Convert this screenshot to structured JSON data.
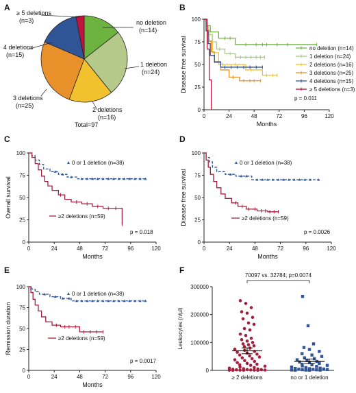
{
  "chart_data": [
    {
      "panel": "A",
      "type": "pie",
      "categories": [
        "no deletion",
        "1 deletion",
        "2 deletions",
        "3 deletions",
        "4 deletions",
        "≥ 5 deletions"
      ],
      "counts": [
        "(n=14)",
        "(n=24)",
        "(n=16)",
        "(n=25)",
        "(n=15)",
        "(n=3)"
      ],
      "values": [
        14,
        24,
        16,
        25,
        15,
        3
      ],
      "colors": [
        "#6cb33f",
        "#b5c98a",
        "#f2c12e",
        "#e8912a",
        "#2f5597",
        "#c0143c"
      ],
      "total_label": "Total=97"
    },
    {
      "panel": "B",
      "type": "line",
      "ylabel": "Disease free survival",
      "xlabel": "Months",
      "xlim": [
        0,
        120
      ],
      "ylim": [
        0,
        100
      ],
      "xticks": [
        0,
        24,
        48,
        72,
        96,
        120
      ],
      "yticks": [
        0,
        25,
        50,
        75,
        100
      ],
      "pvalue": "p = 0.011",
      "series": [
        {
          "name": "no deletion (n=14)",
          "color": "#6cb33f",
          "points": [
            [
              0,
              100
            ],
            [
              2,
              93
            ],
            [
              6,
              86
            ],
            [
              14,
              79
            ],
            [
              30,
              72
            ],
            [
              60,
              72
            ],
            [
              108,
              72
            ]
          ],
          "censor": [
            20,
            25,
            40,
            50,
            56,
            60,
            70,
            80,
            108
          ]
        },
        {
          "name": "1 deletion (n=24)",
          "color": "#a9c48a",
          "points": [
            [
              0,
              100
            ],
            [
              2,
              92
            ],
            [
              4,
              83
            ],
            [
              8,
              75
            ],
            [
              12,
              67
            ],
            [
              20,
              62
            ],
            [
              30,
              58
            ],
            [
              58,
              58
            ]
          ],
          "censor": [
            15,
            25,
            30,
            35,
            40,
            45,
            50,
            54,
            58
          ]
        },
        {
          "name": "2 deletions (n=16)",
          "color": "#f2c12e",
          "points": [
            [
              0,
              100
            ],
            [
              2,
              88
            ],
            [
              5,
              75
            ],
            [
              8,
              63
            ],
            [
              14,
              50
            ],
            [
              40,
              44
            ],
            [
              56,
              38
            ],
            [
              70,
              38
            ]
          ],
          "censor": [
            18,
            30,
            45,
            60,
            66,
            70
          ]
        },
        {
          "name": "3 deletions (n=25)",
          "color": "#e8912a",
          "points": [
            [
              0,
              100
            ],
            [
              2,
              88
            ],
            [
              4,
              76
            ],
            [
              7,
              64
            ],
            [
              10,
              52
            ],
            [
              16,
              44
            ],
            [
              24,
              36
            ],
            [
              34,
              32
            ],
            [
              54,
              32
            ]
          ],
          "censor": [
            28,
            38,
            44,
            48,
            54
          ]
        },
        {
          "name": "4 deletions (n=15)",
          "color": "#2f5597",
          "points": [
            [
              0,
              100
            ],
            [
              2,
              87
            ],
            [
              4,
              73
            ],
            [
              6,
              60
            ],
            [
              10,
              53
            ],
            [
              16,
              47
            ],
            [
              56,
              47
            ]
          ],
          "censor": [
            20,
            26,
            32,
            38,
            44,
            50,
            56
          ]
        },
        {
          "name": "≥ 5 deletions (n=3)",
          "color": "#c0143c",
          "points": [
            [
              0,
              100
            ],
            [
              3,
              67
            ],
            [
              5,
              33
            ],
            [
              7,
              0
            ]
          ],
          "censor": []
        }
      ]
    },
    {
      "panel": "C",
      "type": "line",
      "ylabel": "Overall survival",
      "xlabel": "Months",
      "xlim": [
        0,
        120
      ],
      "ylim": [
        0,
        100
      ],
      "xticks": [
        0,
        24,
        48,
        72,
        96,
        120
      ],
      "yticks": [
        0,
        25,
        50,
        75,
        100
      ],
      "pvalue": "p = 0.018",
      "series": [
        {
          "name": "0 or 1 deletion (n=38)",
          "color": "#2f5597",
          "dashed": true,
          "points": [
            [
              0,
              100
            ],
            [
              3,
              97
            ],
            [
              6,
              92
            ],
            [
              10,
              87
            ],
            [
              14,
              82
            ],
            [
              20,
              79
            ],
            [
              28,
              76
            ],
            [
              36,
              73
            ],
            [
              46,
              71
            ],
            [
              110,
              71
            ]
          ],
          "censor": [
            25,
            32,
            40,
            50,
            55,
            60,
            65,
            70,
            75,
            80,
            85,
            90,
            95,
            100,
            105,
            110
          ]
        },
        {
          "name": "≥2 deletions (n=59)",
          "color": "#a51d3c",
          "dashed": false,
          "points": [
            [
              0,
              100
            ],
            [
              3,
              95
            ],
            [
              6,
              88
            ],
            [
              9,
              81
            ],
            [
              12,
              74
            ],
            [
              15,
              68
            ],
            [
              18,
              63
            ],
            [
              22,
              58
            ],
            [
              28,
              53
            ],
            [
              34,
              48
            ],
            [
              40,
              45
            ],
            [
              50,
              43
            ],
            [
              60,
              40
            ],
            [
              70,
              38
            ],
            [
              86,
              38
            ],
            [
              88,
              20
            ]
          ],
          "censor": [
            30,
            45,
            55,
            65,
            75,
            82,
            88
          ]
        }
      ]
    },
    {
      "panel": "D",
      "type": "line",
      "ylabel": "Disease free survival",
      "xlabel": "Months",
      "xlim": [
        0,
        120
      ],
      "ylim": [
        0,
        100
      ],
      "xticks": [
        0,
        24,
        48,
        72,
        96,
        120
      ],
      "yticks": [
        0,
        25,
        50,
        75,
        100
      ],
      "pvalue": "p = 0.0026",
      "series": [
        {
          "name": "0 or 1 deletion (n=38)",
          "color": "#2f5597",
          "dashed": true,
          "points": [
            [
              0,
              100
            ],
            [
              2,
              95
            ],
            [
              5,
              90
            ],
            [
              8,
              84
            ],
            [
              12,
              79
            ],
            [
              20,
              76
            ],
            [
              30,
              74
            ],
            [
              45,
              70
            ],
            [
              108,
              70
            ]
          ],
          "censor": [
            25,
            35,
            40,
            50,
            55,
            60,
            65,
            70,
            75,
            80,
            85,
            90,
            95,
            100,
            108
          ]
        },
        {
          "name": "≥2 deletions (n=59)",
          "color": "#a51d3c",
          "dashed": false,
          "points": [
            [
              0,
              100
            ],
            [
              2,
              92
            ],
            [
              4,
              84
            ],
            [
              6,
              76
            ],
            [
              9,
              68
            ],
            [
              12,
              61
            ],
            [
              16,
              54
            ],
            [
              20,
              49
            ],
            [
              26,
              44
            ],
            [
              32,
              40
            ],
            [
              40,
              37
            ],
            [
              50,
              35
            ],
            [
              60,
              34
            ],
            [
              70,
              34
            ]
          ],
          "censor": [
            30,
            36,
            42,
            48,
            54,
            58,
            62,
            66,
            70
          ]
        }
      ]
    },
    {
      "panel": "E",
      "type": "line",
      "ylabel": "Remission duration",
      "xlabel": "Months",
      "xlim": [
        0,
        120
      ],
      "ylim": [
        0,
        100
      ],
      "xticks": [
        0,
        24,
        48,
        72,
        96,
        120
      ],
      "yticks": [
        0,
        25,
        50,
        75,
        100
      ],
      "pvalue": "p = 0.0017",
      "series": [
        {
          "name": "0 or 1 deletion (n=38)",
          "color": "#2f5597",
          "dashed": true,
          "points": [
            [
              0,
              100
            ],
            [
              3,
              97
            ],
            [
              6,
              94
            ],
            [
              10,
              91
            ],
            [
              20,
              88
            ],
            [
              30,
              86
            ],
            [
              40,
              83
            ],
            [
              110,
              83
            ]
          ],
          "censor": [
            15,
            25,
            32,
            38,
            45,
            50,
            55,
            60,
            65,
            70,
            75,
            80,
            85,
            90,
            95,
            100,
            105,
            110
          ]
        },
        {
          "name": "≥2 deletions (n=59)",
          "color": "#a51d3c",
          "dashed": false,
          "points": [
            [
              0,
              100
            ],
            [
              2,
              93
            ],
            [
              4,
              85
            ],
            [
              6,
              78
            ],
            [
              9,
              71
            ],
            [
              12,
              64
            ],
            [
              16,
              58
            ],
            [
              22,
              54
            ],
            [
              30,
              52
            ],
            [
              40,
              52
            ],
            [
              48,
              46
            ],
            [
              70,
              46
            ]
          ],
          "censor": [
            26,
            34,
            38,
            44,
            52,
            58,
            64,
            70
          ]
        }
      ]
    },
    {
      "panel": "F",
      "type": "scatter",
      "ylabel": "Leukocytes (n/µl)",
      "categories": [
        "≥ 2 deletions",
        "no or 1 deletion"
      ],
      "ylim": [
        0,
        300000
      ],
      "yticks": [
        0,
        100000,
        200000,
        300000
      ],
      "annotation": "70097 vs. 32784; p=0.0074",
      "means": [
        70097,
        32784
      ],
      "sem": [
        10500,
        8000
      ],
      "series": [
        {
          "name": "≥ 2 deletions",
          "color": "#a51d3c",
          "shape": "circle",
          "values": [
            250000,
            240000,
            225000,
            210000,
            205000,
            190000,
            185000,
            170000,
            165000,
            150000,
            145000,
            130000,
            125000,
            115000,
            110000,
            105000,
            100000,
            95000,
            92000,
            88000,
            85000,
            80000,
            76000,
            72000,
            68000,
            65000,
            62000,
            58000,
            55000,
            52000,
            48000,
            45000,
            42000,
            38000,
            35000,
            32000,
            28000,
            25000,
            22000,
            20000,
            18000,
            15000,
            12000,
            10000,
            8000,
            6000,
            5000,
            4000,
            3000,
            2500,
            2000,
            1500,
            1200,
            1000,
            800,
            600,
            500,
            400,
            300
          ]
        },
        {
          "name": "no or 1 deletion",
          "color": "#2f5597",
          "shape": "square",
          "values": [
            265000,
            160000,
            95000,
            82000,
            75000,
            68000,
            60000,
            55000,
            50000,
            45000,
            42000,
            38000,
            35000,
            32000,
            30000,
            28000,
            25000,
            22000,
            20000,
            18000,
            16000,
            14000,
            12000,
            10000,
            8000,
            7000,
            6000,
            5000,
            4000,
            3500,
            3000,
            2500,
            2000,
            1500,
            1000,
            800,
            600,
            400
          ]
        }
      ]
    }
  ]
}
